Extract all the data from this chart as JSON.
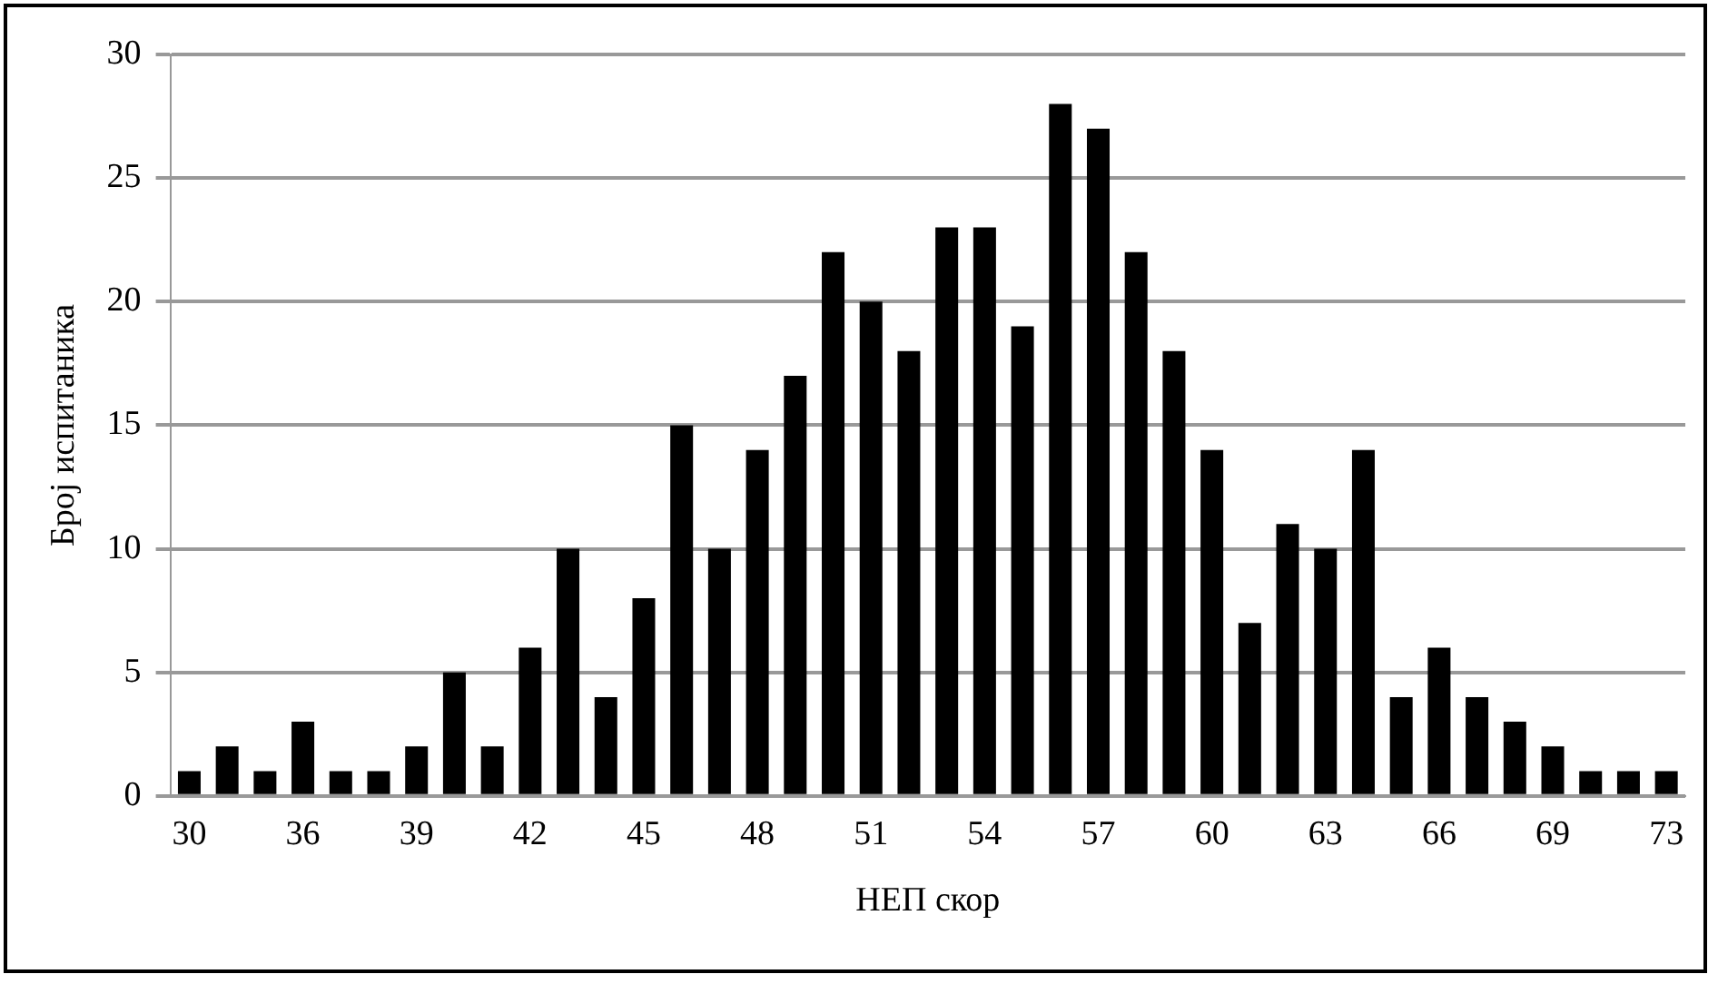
{
  "chart_data": {
    "type": "bar",
    "xlabel": "НЕП скор",
    "ylabel": "Број испитаника",
    "categories": [
      "30",
      null,
      null,
      "36",
      null,
      null,
      "39",
      null,
      null,
      "42",
      null,
      null,
      "45",
      null,
      null,
      "48",
      null,
      null,
      "51",
      null,
      null,
      "54",
      null,
      null,
      "57",
      null,
      null,
      "60",
      null,
      null,
      "63",
      null,
      null,
      "66",
      null,
      null,
      "69",
      null,
      null,
      "73"
    ],
    "values": [
      1,
      2,
      1,
      3,
      1,
      1,
      2,
      5,
      2,
      6,
      10,
      4,
      8,
      15,
      10,
      14,
      17,
      22,
      20,
      18,
      23,
      23,
      19,
      28,
      27,
      22,
      18,
      14,
      7,
      11,
      10,
      14,
      4,
      6,
      4,
      3,
      2,
      1,
      1,
      1
    ],
    "color": "#000000",
    "ylim": [
      0,
      30
    ],
    "yticks": [
      0,
      5,
      10,
      15,
      20,
      25,
      30
    ],
    "grid": "y",
    "legend": false
  }
}
